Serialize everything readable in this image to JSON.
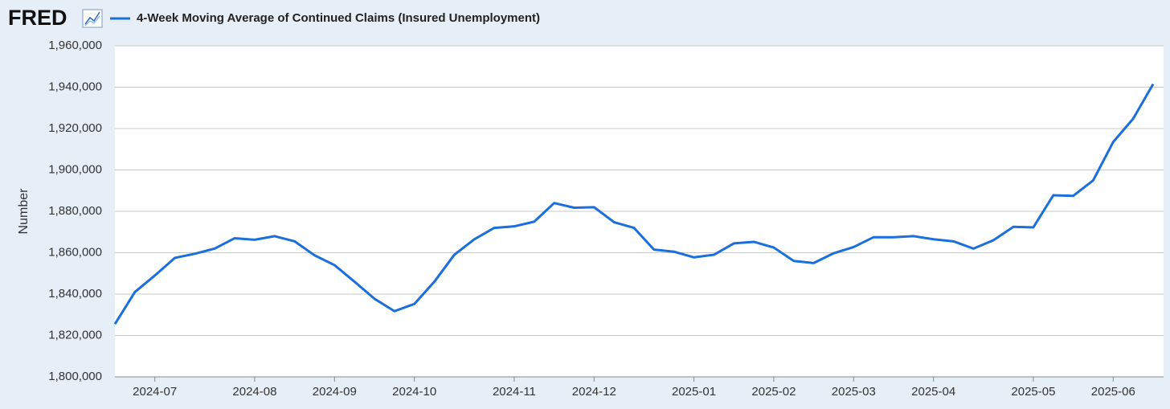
{
  "logo": "FRED",
  "chart_data": {
    "type": "line",
    "y_label": "Number",
    "categories": [
      null,
      null,
      "2024-07",
      null,
      null,
      null,
      null,
      "2024-08",
      null,
      null,
      null,
      "2024-09",
      null,
      null,
      null,
      "2024-10",
      null,
      null,
      null,
      null,
      "2024-11",
      null,
      null,
      null,
      "2024-12",
      null,
      null,
      null,
      null,
      "2025-01",
      null,
      null,
      null,
      "2025-02",
      null,
      null,
      null,
      "2025-03",
      null,
      null,
      null,
      "2025-04",
      null,
      null,
      null,
      null,
      "2025-05",
      null,
      null,
      null,
      "2025-06",
      null,
      null
    ],
    "series": [
      {
        "name": "4-Week Moving Average of Continued Claims (Insured Unemployment)",
        "color": "#1a6fdc",
        "values": [
          1825500,
          1841000,
          1849000,
          1857500,
          1859500,
          1862000,
          1867000,
          1866250,
          1868000,
          1865500,
          1858750,
          1854000,
          1846000,
          1837750,
          1831750,
          1835250,
          1846000,
          1859000,
          1866500,
          1872000,
          1872750,
          1875000,
          1884000,
          1881750,
          1882000,
          1874750,
          1872000,
          1861500,
          1860500,
          1857750,
          1859000,
          1864500,
          1865250,
          1862500,
          1856000,
          1855000,
          1859750,
          1862750,
          1867500,
          1867500,
          1868000,
          1866500,
          1865500,
          1862000,
          1866000,
          1872500,
          1872250,
          1887750,
          1887500,
          1895000,
          1913500,
          1924750,
          1941500
        ]
      }
    ],
    "ylim": [
      1800000,
      1960000
    ],
    "yticks": [
      {
        "value": 1800000,
        "label": "1,800,000"
      },
      {
        "value": 1820000,
        "label": "1,820,000"
      },
      {
        "value": 1840000,
        "label": "1,840,000"
      },
      {
        "value": 1860000,
        "label": "1,860,000"
      },
      {
        "value": 1880000,
        "label": "1,880,000"
      },
      {
        "value": 1900000,
        "label": "1,900,000"
      },
      {
        "value": 1920000,
        "label": "1,920,000"
      },
      {
        "value": 1940000,
        "label": "1,940,000"
      },
      {
        "value": 1960000,
        "label": "1,960,000"
      }
    ],
    "grid": true
  }
}
